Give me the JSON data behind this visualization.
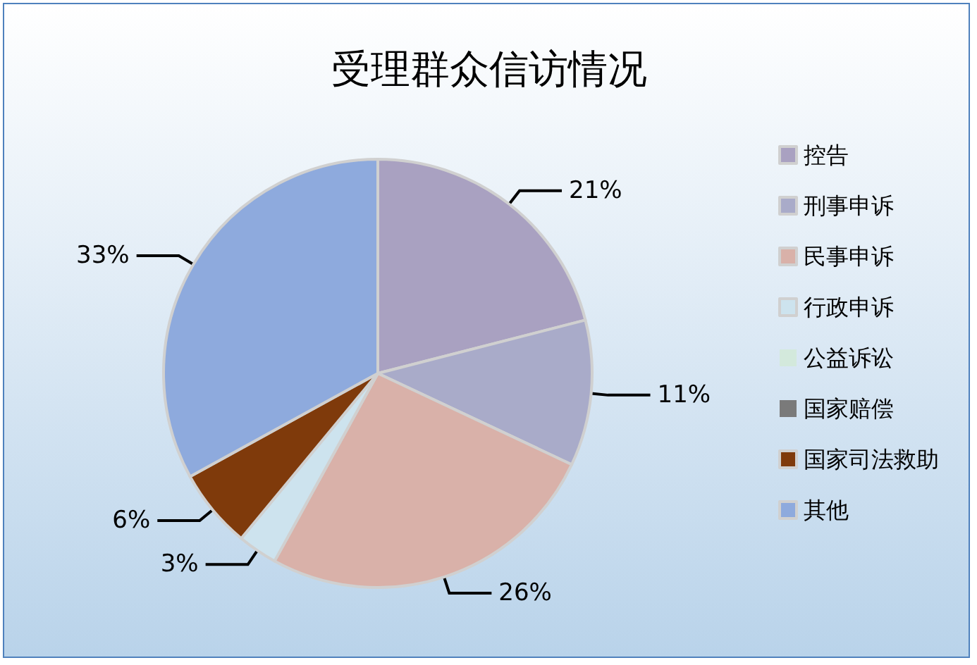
{
  "chart_data": {
    "type": "pie",
    "title": "受理群众信访情况",
    "categories": [
      "控告",
      "刑事申诉",
      "民事申诉",
      "行政申诉",
      "公益诉讼",
      "国家赔偿",
      "国家司法救助",
      "其他"
    ],
    "values": [
      21,
      11,
      26,
      3,
      0,
      0,
      6,
      33
    ],
    "value_labels": [
      "21%",
      "11%",
      "26%",
      "3%",
      null,
      null,
      "6%",
      "33%"
    ],
    "colors": [
      "#a9a1c1",
      "#a9abc9",
      "#d9b1a9",
      "#cde3ee",
      "#d3e9dc",
      "#7a7a7a",
      "#7f3a0b",
      "#8eaadd"
    ],
    "legend": "right"
  }
}
